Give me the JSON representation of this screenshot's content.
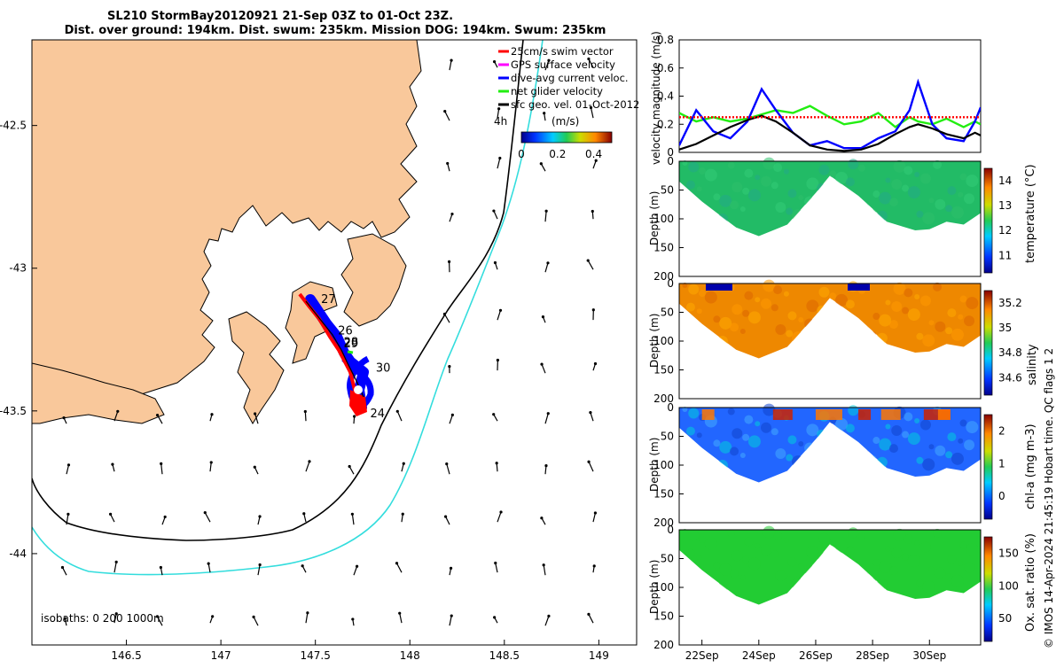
{
  "title": {
    "line1": "SL210 StormBay20120921 21-Sep 03Z to 01-Oct 23Z.",
    "line2": "Dist. over ground: 194km. Dist. swum: 235km. Mission DOG: 194km. Swum: 235km"
  },
  "side_text": "© IMOS 14-Apr-2024 21:45:19 Hobart time. QC flags 1  2",
  "colors": {
    "land": "#f9c89b",
    "track": "#0000ff",
    "track_red": "#ff0000",
    "iso200": "#000000",
    "iso1000": "#33dddd",
    "green": "#22ee11",
    "profile_green": "#22cc33"
  },
  "chart_data": [
    {
      "type": "map",
      "xlim": [
        146.0,
        149.2
      ],
      "ylim": [
        -44.32,
        -42.2
      ],
      "xticks": [
        146.5,
        147,
        147.5,
        148,
        148.5,
        149
      ],
      "yticks": [
        -42.5,
        -43,
        -43.5,
        -44
      ],
      "xtick_labels": [
        "146.5",
        "147",
        "147.5",
        "148",
        "148.5",
        "149"
      ],
      "ytick_labels": [
        "-42.5",
        "-43",
        "-43.5",
        "-44"
      ],
      "legend": {
        "location": "top-right",
        "entries": [
          {
            "label": "25cm/s swim vector",
            "color": "#ff0000"
          },
          {
            "label": "GPS surface velocity",
            "color": "#ff00ff"
          },
          {
            "label": "dive-avg current veloc.",
            "color": "#0000ff"
          },
          {
            "label": "net glider velocity",
            "color": "#22ee11"
          },
          {
            "label": "sfc geo. vel. 01-Oct-2012",
            "color": "#000000"
          }
        ]
      },
      "colorbar": {
        "label": "(m/s)",
        "ticks": [
          "0",
          "0.2",
          "0.4"
        ],
        "range": [
          0,
          0.5
        ],
        "prefix": "4h"
      },
      "isobath_label": "isobaths: 0   200  1000m",
      "day_labels": [
        {
          "text": "27",
          "lon": 147.53,
          "lat": -43.11
        },
        {
          "text": "26",
          "lon": 147.62,
          "lat": -43.22
        },
        {
          "text": "28",
          "lon": 147.65,
          "lat": -43.26
        },
        {
          "text": "29",
          "lon": 147.65,
          "lat": -43.265
        },
        {
          "text": "30",
          "lon": 147.82,
          "lat": -43.35
        },
        {
          "text": "24",
          "lon": 147.79,
          "lat": -43.51
        }
      ]
    },
    {
      "type": "line",
      "ylabel": "velocity magnitude (m/s)",
      "ylim": [
        0,
        0.8
      ],
      "yticks": [
        "0",
        "0.2",
        "0.4",
        "0.6",
        "0.8"
      ],
      "x": [
        21.2,
        21.8,
        22.4,
        23.0,
        23.6,
        24.1,
        24.6,
        25.2,
        25.8,
        26.4,
        27.0,
        27.6,
        28.2,
        28.8,
        29.3,
        29.6,
        30.1,
        30.6,
        31.2,
        31.6,
        31.8
      ],
      "series": [
        {
          "color": "#22ee11",
          "values": [
            0.28,
            0.22,
            0.25,
            0.22,
            0.24,
            0.27,
            0.3,
            0.28,
            0.33,
            0.26,
            0.2,
            0.22,
            0.28,
            0.18,
            0.25,
            0.22,
            0.2,
            0.24,
            0.18,
            0.22,
            0.2
          ]
        },
        {
          "color": "#0000ff",
          "values": [
            0.05,
            0.3,
            0.15,
            0.1,
            0.22,
            0.45,
            0.3,
            0.14,
            0.05,
            0.08,
            0.03,
            0.03,
            0.1,
            0.15,
            0.3,
            0.5,
            0.2,
            0.1,
            0.08,
            0.22,
            0.32
          ]
        },
        {
          "color": "#000000",
          "values": [
            0.02,
            0.06,
            0.12,
            0.18,
            0.23,
            0.26,
            0.22,
            0.14,
            0.05,
            0.02,
            0.01,
            0.02,
            0.06,
            0.13,
            0.18,
            0.2,
            0.17,
            0.13,
            0.1,
            0.14,
            0.12
          ]
        },
        {
          "color": "#ff0000",
          "dashed": true,
          "values": [
            0.25,
            0.25,
            0.25,
            0.25,
            0.25,
            0.25,
            0.25,
            0.25,
            0.25,
            0.25,
            0.25,
            0.25,
            0.25,
            0.25,
            0.25,
            0.25,
            0.25,
            0.25,
            0.25,
            0.25,
            0.25
          ]
        }
      ]
    },
    {
      "type": "section",
      "variable": "temperature",
      "ylabel": "Depth (m)",
      "cblabel": "temperature (°C)",
      "cbticks": [
        "11",
        "12",
        "13",
        "14"
      ],
      "yticks": [
        "0",
        "50",
        "100",
        "150",
        "200"
      ],
      "ylim": [
        0,
        200
      ],
      "depth_profile": {
        "x": [
          21.2,
          22.0,
          23.2,
          24.0,
          25.0,
          26.0,
          26.5,
          27.5,
          28.5,
          29.5,
          30.0,
          30.6,
          31.2,
          31.8
        ],
        "depth": [
          35,
          70,
          115,
          130,
          110,
          55,
          25,
          60,
          105,
          120,
          118,
          105,
          110,
          90
        ]
      }
    },
    {
      "type": "section",
      "variable": "salinity",
      "ylabel": "Depth (m)",
      "cblabel": "salinity",
      "cbticks": [
        "34.6",
        "34.8",
        "35",
        "35.2"
      ],
      "yticks": [
        "0",
        "50",
        "100",
        "150",
        "200"
      ],
      "ylim": [
        0,
        200
      ]
    },
    {
      "type": "section",
      "variable": "chl-a",
      "ylabel": "Depth (m)",
      "cblabel": "chl-a (mg m-3)",
      "cbticks": [
        "0",
        "1",
        "2"
      ],
      "yticks": [
        "0",
        "50",
        "100",
        "150",
        "200"
      ],
      "ylim": [
        0,
        200
      ]
    },
    {
      "type": "section",
      "variable": "oxygen",
      "ylabel": "Depth (m)",
      "cblabel": "Ox. sat. ratio (%)",
      "cbticks": [
        "50",
        "100",
        "150"
      ],
      "yticks": [
        "0",
        "50",
        "100",
        "150",
        "200"
      ],
      "ylim": [
        0,
        200
      ],
      "xticks": [
        22,
        24,
        26,
        28,
        30
      ],
      "xtick_labels": [
        "22Sep",
        "24Sep",
        "26Sep",
        "28Sep",
        "30Sep"
      ]
    }
  ]
}
